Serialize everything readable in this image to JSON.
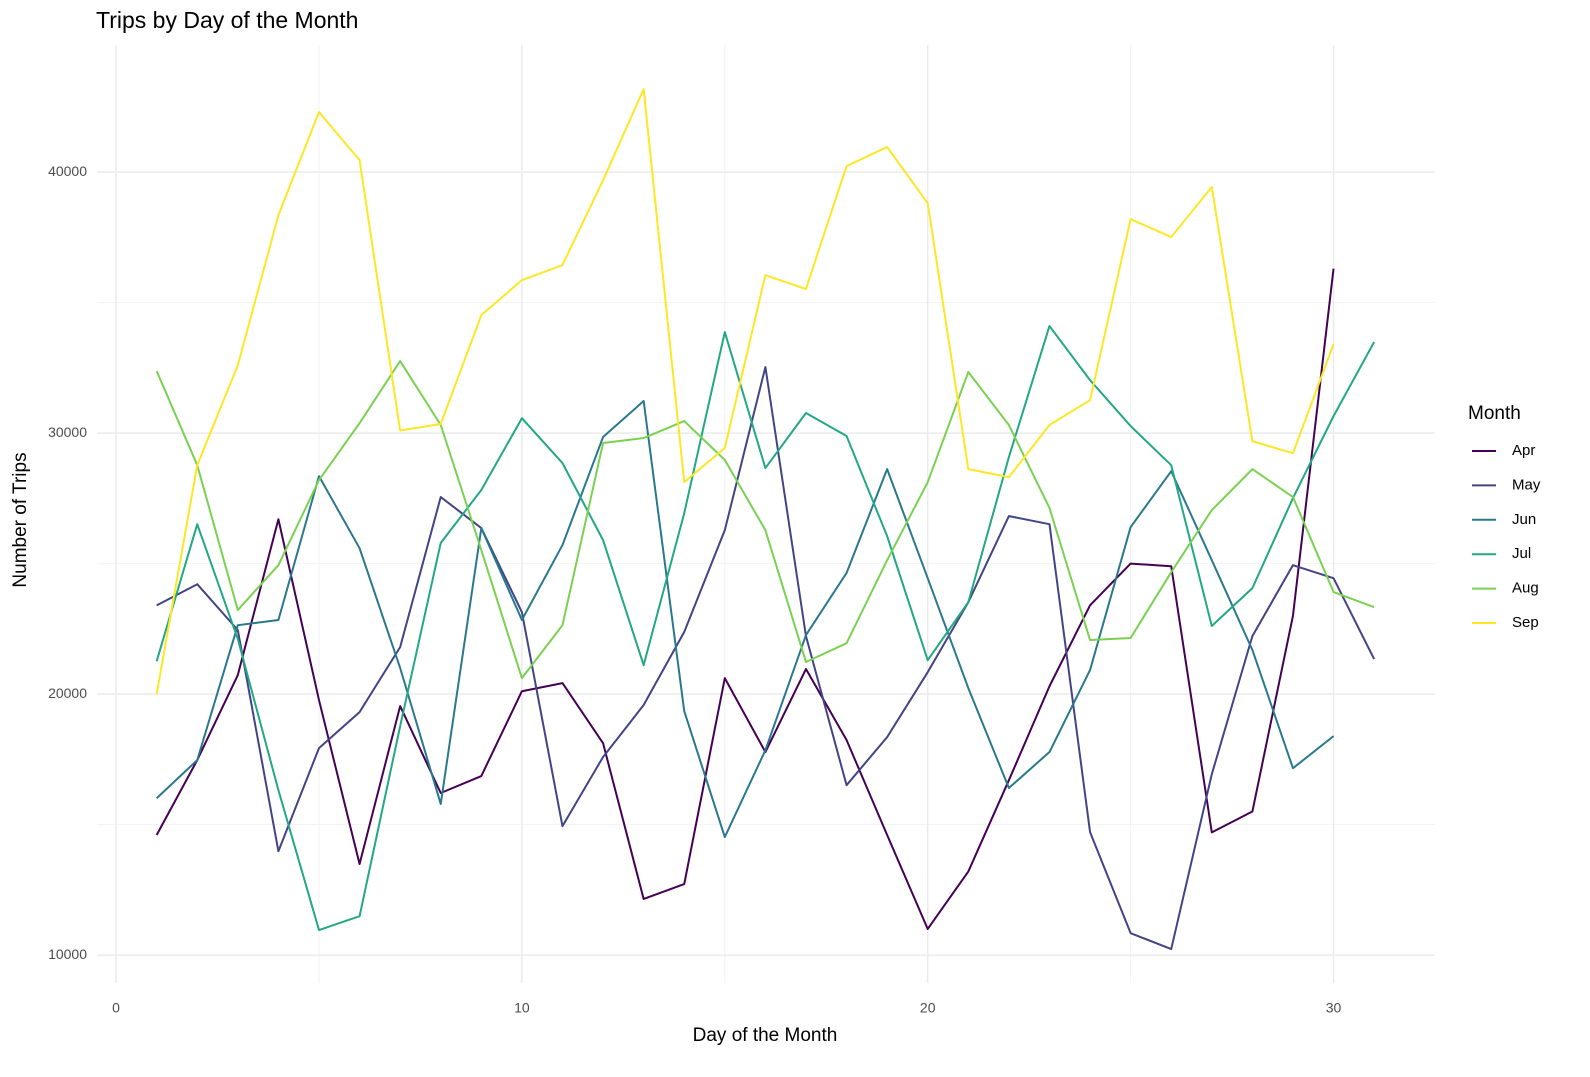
{
  "chart_data": {
    "type": "line",
    "title": "Trips by Day of the Month",
    "xlabel": "Day of the Month",
    "ylabel": "Number of Trips",
    "legend_title": "Month",
    "x": [
      1,
      2,
      3,
      4,
      5,
      6,
      7,
      8,
      9,
      10,
      11,
      12,
      13,
      14,
      15,
      16,
      17,
      18,
      19,
      20,
      21,
      22,
      23,
      24,
      25,
      26,
      27,
      28,
      29,
      30,
      31
    ],
    "series": [
      {
        "name": "Apr",
        "color": "#440154",
        "values": [
          14600,
          17470,
          20730,
          26700,
          19770,
          13490,
          19540,
          16210,
          16860,
          20110,
          20420,
          18120,
          12150,
          12720,
          20610,
          17780,
          20960,
          18240,
          14600,
          11000,
          13200,
          16700,
          20300,
          23400,
          25000,
          24900,
          14700,
          15500,
          23000,
          36300,
          null
        ]
      },
      {
        "name": "May",
        "color": "#414487",
        "values": [
          23400,
          24210,
          22450,
          13980,
          17930,
          19310,
          21800,
          27550,
          26360,
          23140,
          14940,
          17590,
          19580,
          22380,
          26280,
          32530,
          22220,
          16510,
          18350,
          20840,
          23520,
          26820,
          26510,
          14710,
          10840,
          10230,
          16930,
          22220,
          24940,
          24440,
          21340
        ]
      },
      {
        "name": "Jun",
        "color": "#2A788E",
        "values": [
          16010,
          17470,
          22640,
          22840,
          28350,
          25590,
          21000,
          15790,
          26360,
          22840,
          25710,
          29850,
          31230,
          19350,
          14520,
          17850,
          22260,
          24640,
          28620,
          24440,
          20230,
          16400,
          17780,
          20920,
          26400,
          28540,
          25130,
          21690,
          17160,
          18390,
          null
        ]
      },
      {
        "name": "Jul",
        "color": "#22A884",
        "values": [
          21260,
          26510,
          22110,
          16320,
          10960,
          11490,
          18770,
          25790,
          27820,
          30570,
          28850,
          25900,
          21110,
          26930,
          33870,
          28660,
          30770,
          29890,
          26050,
          21300,
          23520,
          29080,
          34100,
          32030,
          30270,
          28770,
          22610,
          24060,
          27510,
          30650,
          33490
        ]
      },
      {
        "name": "Aug",
        "color": "#7AD151",
        "values": [
          32380,
          28770,
          23220,
          24940,
          28200,
          30380,
          32760,
          30310,
          25520,
          20610,
          22640,
          29620,
          29810,
          30460,
          28970,
          26280,
          21230,
          21950,
          25130,
          28120,
          32340,
          30310,
          27130,
          22070,
          22150,
          24670,
          27050,
          28620,
          27550,
          23910,
          23330
        ]
      },
      {
        "name": "Sep",
        "color": "#FDE725",
        "values": [
          20000,
          28770,
          32600,
          38350,
          42300,
          40460,
          30100,
          30350,
          34520,
          35860,
          36440,
          39690,
          43180,
          28120,
          29430,
          36050,
          35520,
          40230,
          40960,
          38810,
          28620,
          28310,
          30310,
          31260,
          38200,
          37510,
          39430,
          29690,
          29230,
          33410,
          null
        ]
      }
    ],
    "xlim": [
      -0.47,
      32.5
    ],
    "xticks": [
      0,
      10,
      20,
      30
    ],
    "xminorticks": [
      5,
      15,
      25
    ],
    "ylim": [
      8930,
      44870
    ],
    "yticks": [
      10000,
      20000,
      30000,
      40000
    ],
    "yminorticks": [
      15000,
      25000,
      35000
    ],
    "grid": true,
    "legend": "right"
  }
}
